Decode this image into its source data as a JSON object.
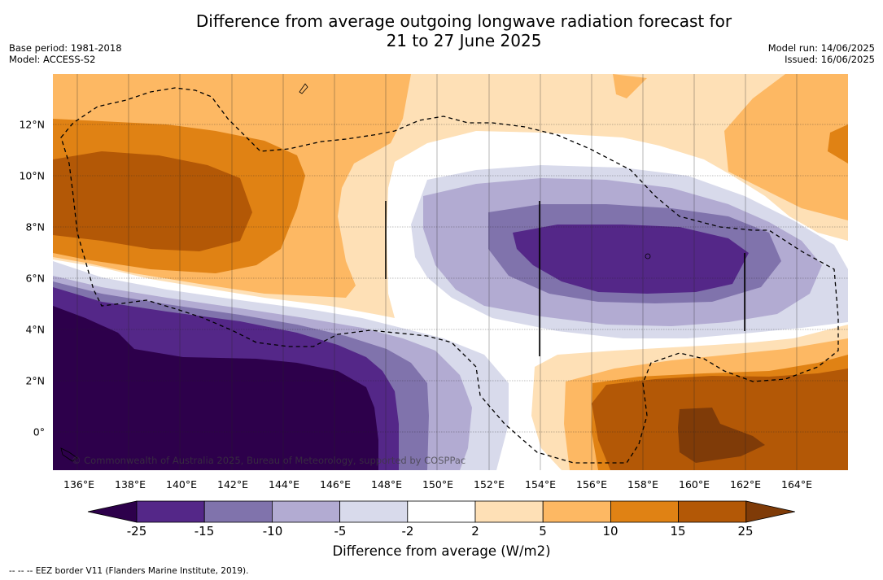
{
  "title_line1": "Difference from average outgoing longwave radiation forecast for",
  "title_line2": "21 to 27 June 2025",
  "base_period": "Base period: 1981-2018",
  "model": "Model: ACCESS-S2",
  "model_run": "Model run: 14/06/2025",
  "issued": "Issued: 16/06/2025",
  "credit": "© Commonwealth of Australia 2025, Bureau of Meteorology, supported by COSPPac",
  "x_ticks": [
    "136°E",
    "138°E",
    "140°E",
    "142°E",
    "144°E",
    "146°E",
    "148°E",
    "150°E",
    "152°E",
    "154°E",
    "156°E",
    "158°E",
    "160°E",
    "162°E",
    "164°E"
  ],
  "y_ticks": [
    "12°N",
    "10°N",
    "8°N",
    "6°N",
    "4°N",
    "2°N",
    "0°"
  ],
  "colorbar": {
    "labels": [
      "-25",
      "-15",
      "-10",
      "-5",
      "-2",
      "2",
      "5",
      "10",
      "15",
      "25"
    ],
    "title": "Difference from average (W/m2)",
    "colors": [
      "#2d004b",
      "#542788",
      "#8073ac",
      "#b2abd2",
      "#d8daeb",
      "#ffffff",
      "#fee0b6",
      "#fdb863",
      "#e08214",
      "#b35806",
      "#7f3b08"
    ]
  },
  "footnote": "--  --  -- EEZ border V11 (Flanders Marine Institute, 2019)."
}
